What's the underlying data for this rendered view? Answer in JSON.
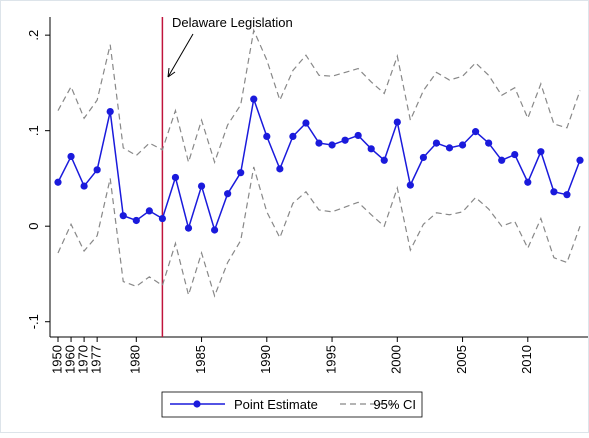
{
  "chart_data": {
    "type": "line",
    "annotation": "Delaware Legislation",
    "vline": {
      "category_index": 8,
      "color": "#c0143c"
    },
    "categories": [
      1950,
      1960,
      1970,
      1977,
      null,
      null,
      1980,
      null,
      null,
      null,
      null,
      1985,
      null,
      null,
      null,
      null,
      1990,
      null,
      null,
      null,
      null,
      1995,
      null,
      null,
      null,
      null,
      2000,
      null,
      null,
      null,
      null,
      2005,
      null,
      null,
      null,
      null,
      2010,
      null,
      null,
      null,
      null
    ],
    "series": [
      {
        "name": "Point Estimate",
        "color": "#1a1adc",
        "values": [
          0.046,
          0.073,
          0.042,
          0.059,
          0.12,
          0.011,
          0.006,
          0.016,
          0.008,
          0.051,
          -0.002,
          0.042,
          -0.004,
          0.034,
          0.056,
          0.133,
          0.094,
          0.06,
          0.094,
          0.108,
          0.087,
          0.085,
          0.09,
          0.095,
          0.081,
          0.069,
          0.109,
          0.043,
          0.072,
          0.087,
          0.082,
          0.085,
          0.099,
          0.087,
          0.069,
          0.075,
          0.046,
          0.078,
          0.036,
          0.033,
          0.069
        ]
      }
    ],
    "ci": {
      "name": "95% CI",
      "color": "#888888",
      "upper": [
        0.121,
        0.146,
        0.113,
        0.132,
        0.19,
        0.082,
        0.074,
        0.087,
        0.08,
        0.121,
        0.067,
        0.111,
        0.067,
        0.106,
        0.127,
        0.205,
        0.174,
        0.132,
        0.163,
        0.179,
        0.158,
        0.157,
        0.161,
        0.165,
        0.151,
        0.139,
        0.178,
        0.111,
        0.142,
        0.161,
        0.153,
        0.157,
        0.171,
        0.158,
        0.137,
        0.145,
        0.113,
        0.149,
        0.107,
        0.103,
        0.142
      ],
      "lower": [
        -0.028,
        0.002,
        -0.026,
        -0.01,
        0.05,
        -0.058,
        -0.063,
        -0.053,
        -0.062,
        -0.018,
        -0.072,
        -0.028,
        -0.073,
        -0.038,
        -0.015,
        0.062,
        0.015,
        -0.012,
        0.024,
        0.036,
        0.017,
        0.015,
        0.02,
        0.025,
        0.012,
        0.0,
        0.04,
        -0.025,
        0.002,
        0.014,
        0.012,
        0.015,
        0.03,
        0.018,
        0.0,
        0.005,
        -0.023,
        0.008,
        -0.033,
        -0.038,
        0.0
      ]
    },
    "ylim": [
      -0.116,
      0.219
    ],
    "yticks": [
      {
        "value": -0.1,
        "label": "-.1"
      },
      0,
      {
        "value": 0.1,
        "label": ".1"
      },
      {
        "value": 0.2,
        "label": ".2"
      }
    ]
  }
}
